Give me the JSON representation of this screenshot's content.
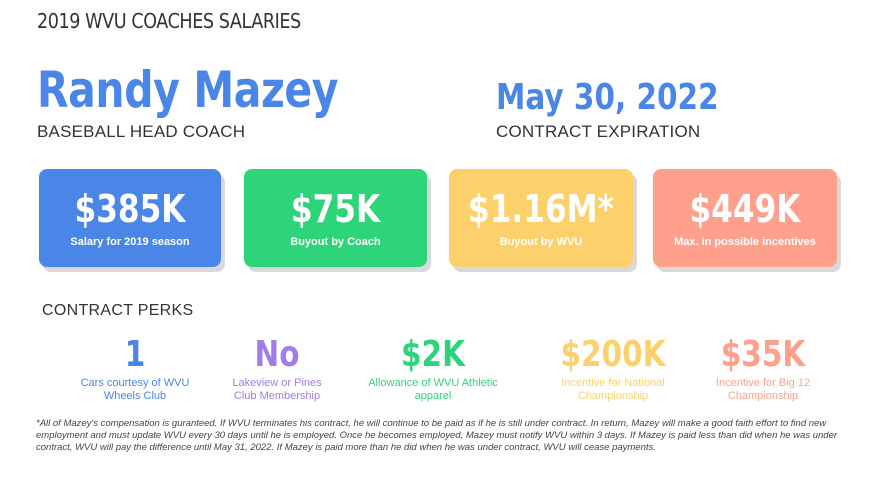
{
  "page_title": "2019 WVU COACHES SALARIES",
  "coach": {
    "name": "Randy Mazey",
    "title": "BASEBALL HEAD COACH"
  },
  "contract": {
    "expiration_date": "May 30, 2022",
    "expiration_label": "CONTRACT EXPIRATION"
  },
  "cards": [
    {
      "value": "$385K",
      "label": "Salary for 2019 season",
      "color": "#4a86e8"
    },
    {
      "value": "$75K",
      "label": "Buyout by Coach",
      "color": "#2ed47a"
    },
    {
      "value": "$1.16M*",
      "label": "Buyout by WVU",
      "color": "#fcd16b"
    },
    {
      "value": "$449K",
      "label": "Max. in possible incentives",
      "color": "#fea08c"
    }
  ],
  "perks": {
    "heading": "CONTRACT PERKS",
    "items": [
      {
        "value": "1",
        "label": "Cars courtesy of WVU Wheels Club",
        "color": "#4a86e8"
      },
      {
        "value": "No",
        "label": "Lakeview or Pines Club Membership",
        "color": "#a07de8"
      },
      {
        "value": "$2K",
        "label": "Allowance of WVU Athletic apparel",
        "color": "#2ed47a"
      },
      {
        "value": "$200K",
        "label": "Incentive for National Championship",
        "color": "#fcd16b"
      },
      {
        "value": "$35K",
        "label": "Incentive for Big 12 Championship",
        "color": "#fea08c"
      }
    ]
  },
  "footnote": "*All of Mazey's compensation is guranteed. If WVU terminates his contract, he will continue to be paid as if he is still under contract. In return, Mazey will make a good faith effort to find new employment and must update WVU every 30 days until he is employed. Once he becomes employed, Mazey must notify WVU within 3 days. If Mazey is paid less than did when he was under contract, WVU will pay the difference until May 31, 2022. If Mazey is paid more than he did when he was under contract, WVU will cease payments."
}
